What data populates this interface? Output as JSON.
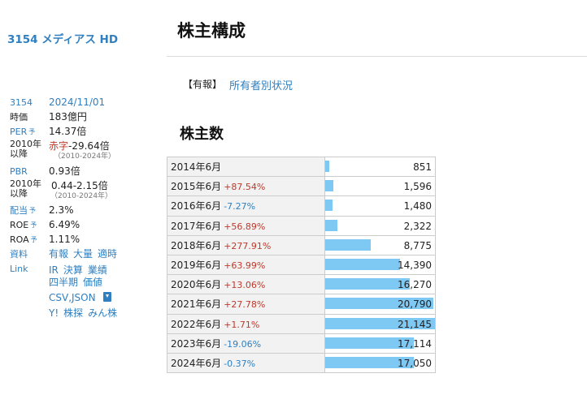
{
  "sidebar": {
    "company_title": "3154 メディアス HD",
    "code": "3154",
    "date": "2024/11/01",
    "market_cap_label": "時価",
    "market_cap": "183億円",
    "per_label": "PER",
    "per": "14.37倍",
    "range_label_line1": "2010年",
    "range_label_line2": "以降",
    "per_range_prefix": "赤字",
    "per_range": "-29.64倍",
    "per_range_years": "（2010-2024年）",
    "pbr_label": "PBR",
    "pbr": "0.93倍",
    "pbr_range": "0.44-2.15倍",
    "pbr_range_years": "（2010-2024年）",
    "dividend_label": "配当",
    "dividend": "2.3%",
    "roe_label": "ROE",
    "roe": "6.49%",
    "roa_label": "ROA",
    "roa": "1.11%",
    "forecast_mark": "予",
    "materials_label": "資料",
    "materials": [
      "有報",
      "大量",
      "適時"
    ],
    "link_label": "Link",
    "links_row1": [
      "IR",
      "決算",
      "業績"
    ],
    "links_row2": [
      "四半期",
      "価値"
    ],
    "links_row3": "CSV,JSON",
    "links_row4": [
      "Y!",
      "株探",
      "みん株"
    ]
  },
  "main": {
    "page_title": "株主構成",
    "report_bracket": "【有報】",
    "report_link": "所有者別状況",
    "section_title": "株主数"
  },
  "colors": {
    "link": "#2f7fc1",
    "up": "#c0392b",
    "bar": "#7ec8f4"
  },
  "chart_data": {
    "type": "bar",
    "title": "株主数",
    "orientation": "horizontal",
    "xlim": [
      0,
      21145
    ],
    "categories": [
      "2014年6月",
      "2015年6月",
      "2016年6月",
      "2017年6月",
      "2018年6月",
      "2019年6月",
      "2020年6月",
      "2021年6月",
      "2022年6月",
      "2023年6月",
      "2024年6月"
    ],
    "changes": [
      "",
      "+87.54%",
      "-7.27%",
      "+56.89%",
      "+277.91%",
      "+63.99%",
      "+13.06%",
      "+27.78%",
      "+1.71%",
      "-19.06%",
      "-0.37%"
    ],
    "values": [
      851,
      1596,
      1480,
      2322,
      8775,
      14390,
      16270,
      20790,
      21145,
      17114,
      17050
    ],
    "value_labels": [
      "851",
      "1,596",
      "1,480",
      "2,322",
      "8,775",
      "14,390",
      "16,270",
      "20,790",
      "21,145",
      "17,114",
      "17,050"
    ]
  }
}
